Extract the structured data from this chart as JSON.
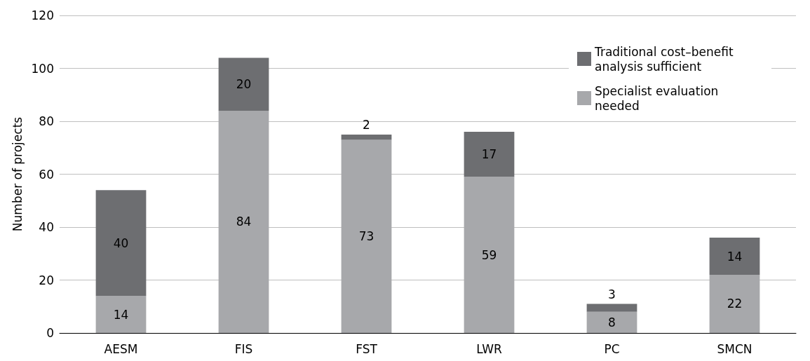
{
  "chart_data": {
    "type": "bar",
    "stacked": true,
    "ylabel": "Number of projects",
    "categories": [
      "AESM",
      "FIS",
      "FST",
      "LWR",
      "PC",
      "SMCN"
    ],
    "series": [
      {
        "name": "Specialist evaluation needed",
        "color": "#a7a8ab",
        "values": [
          14,
          84,
          73,
          59,
          8,
          22
        ]
      },
      {
        "name": "Traditional cost–benefit analysis sufficient",
        "color": "#6d6e71",
        "values": [
          40,
          20,
          2,
          17,
          3,
          14
        ]
      }
    ],
    "ylim": [
      0,
      120
    ],
    "yticks": [
      0,
      20,
      40,
      60,
      80,
      100,
      120
    ],
    "grid": "y",
    "legend": "top right",
    "data_labels": true
  }
}
